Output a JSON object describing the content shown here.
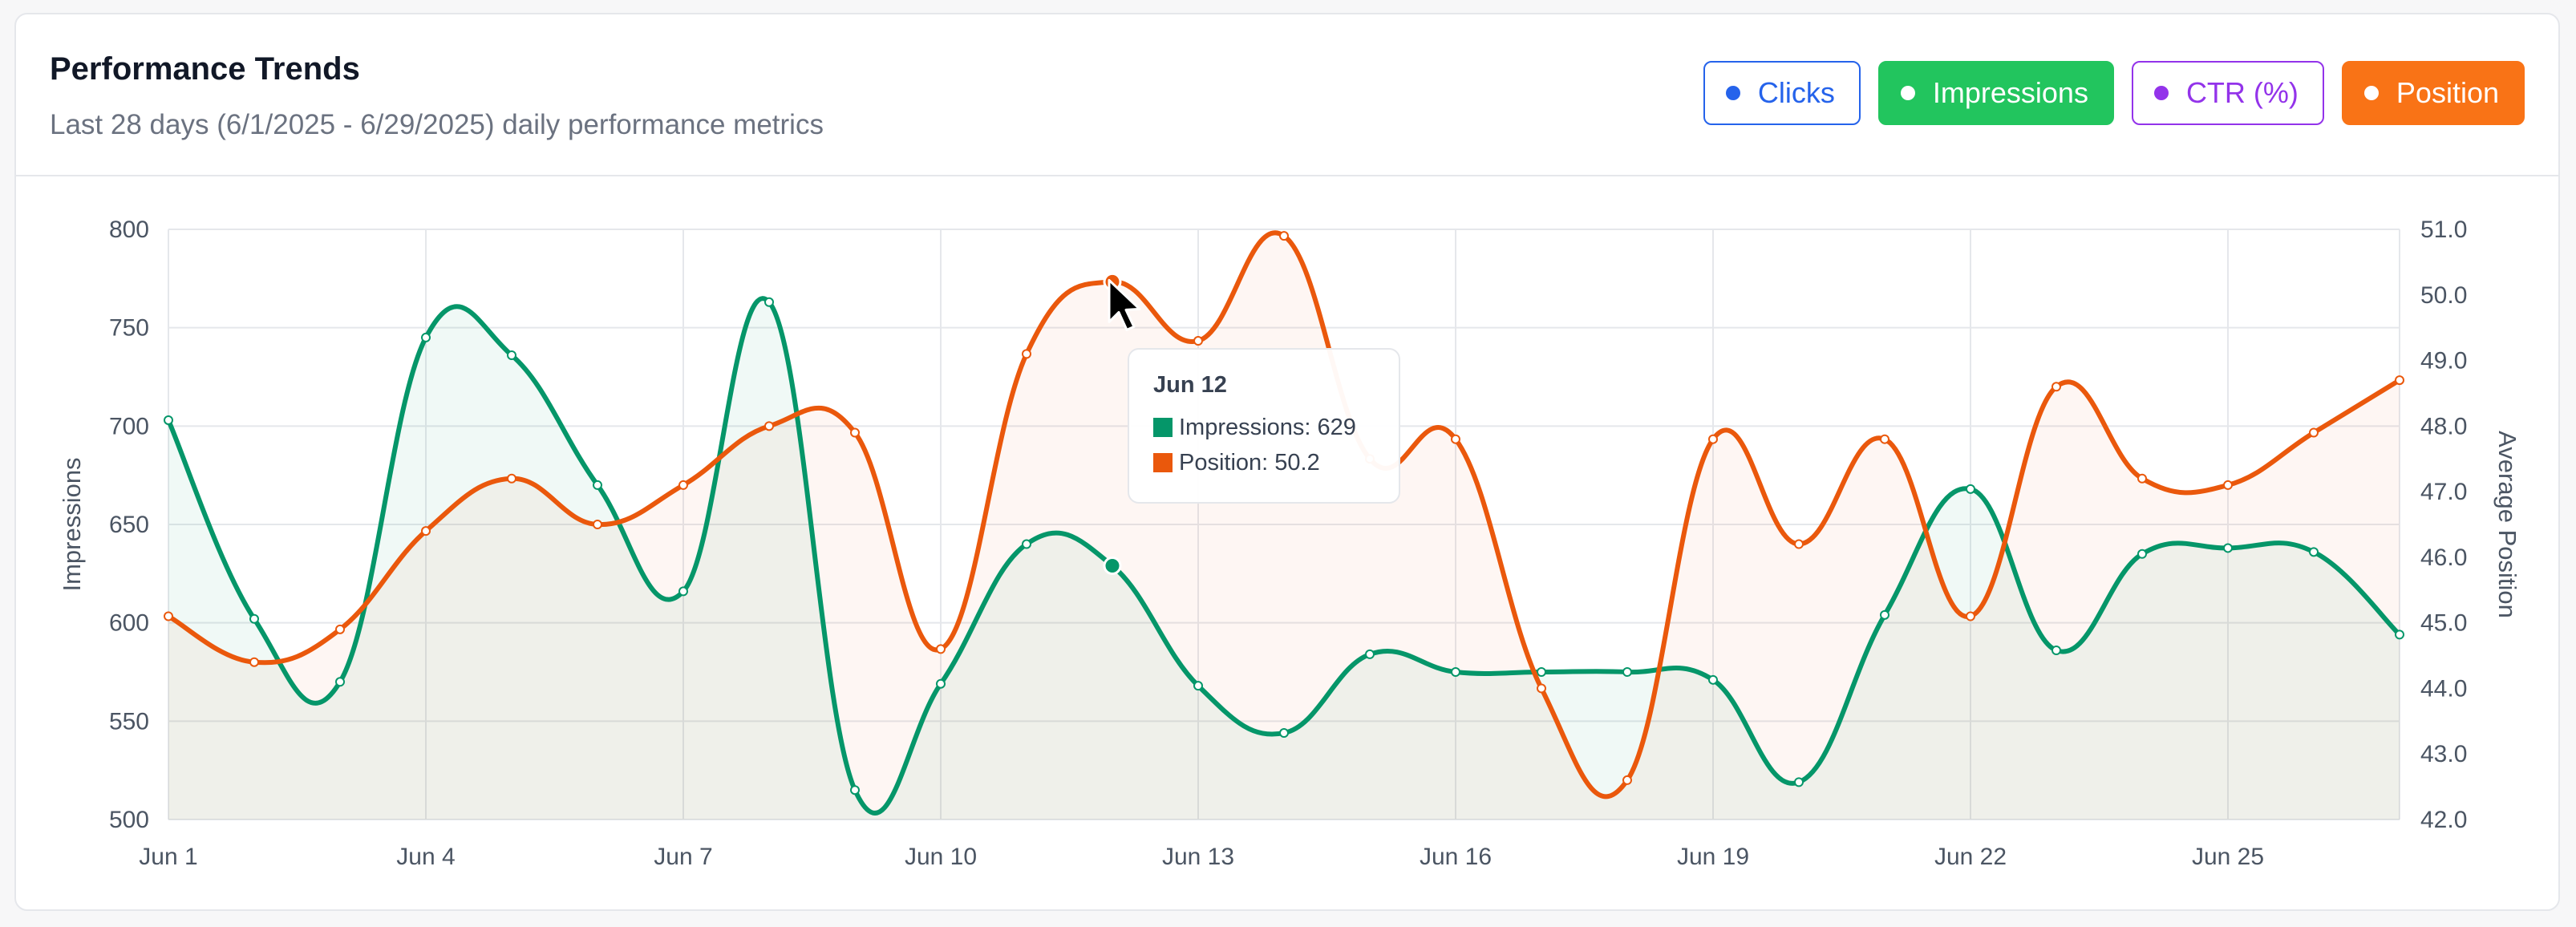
{
  "header": {
    "title": "Performance Trends",
    "subtitle": "Last 28 days (6/1/2025 - 6/29/2025) daily performance metrics"
  },
  "legend": {
    "clicks": "Clicks",
    "impressions": "Impressions",
    "ctr": "CTR (%)",
    "position": "Position"
  },
  "colors": {
    "impressions": "#059669",
    "position": "#ea580c",
    "clicks": "#2563eb",
    "ctr": "#9333ea"
  },
  "tooltip": {
    "title": "Jun 12",
    "impressions": "Impressions: 629",
    "position": "Position: 50.2"
  },
  "chart_data": {
    "type": "line",
    "x": [
      "Jun 1",
      "Jun 2",
      "Jun 3",
      "Jun 4",
      "Jun 5",
      "Jun 6",
      "Jun 7",
      "Jun 8",
      "Jun 9",
      "Jun 10",
      "Jun 11",
      "Jun 12",
      "Jun 13",
      "Jun 14",
      "Jun 15",
      "Jun 16",
      "Jun 17",
      "Jun 18",
      "Jun 19",
      "Jun 20",
      "Jun 21",
      "Jun 22",
      "Jun 23",
      "Jun 24",
      "Jun 25",
      "Jun 26",
      "Jun 27"
    ],
    "x_tick_labels": [
      "Jun 1",
      "Jun 4",
      "Jun 7",
      "Jun 10",
      "Jun 13",
      "Jun 16",
      "Jun 19",
      "Jun 22",
      "Jun 25"
    ],
    "series": [
      {
        "name": "Impressions",
        "axis": "left",
        "values": [
          703,
          602,
          570,
          745,
          736,
          670,
          616,
          763,
          515,
          569,
          640,
          629,
          568,
          544,
          584,
          575,
          575,
          575,
          571,
          519,
          604,
          668,
          586,
          635,
          638,
          636,
          594
        ]
      },
      {
        "name": "Position",
        "axis": "right",
        "values": [
          45.1,
          44.4,
          44.9,
          46.4,
          47.2,
          46.5,
          47.1,
          48.0,
          47.9,
          44.6,
          49.1,
          50.2,
          49.3,
          50.9,
          47.5,
          47.8,
          44.0,
          42.6,
          47.8,
          46.2,
          47.8,
          45.1,
          48.6,
          47.2,
          47.1,
          47.9,
          48.7
        ]
      }
    ],
    "y_left": {
      "label": "Impressions",
      "range": [
        500,
        800
      ],
      "ticks": [
        500,
        550,
        600,
        650,
        700,
        750,
        800
      ]
    },
    "y_right": {
      "label": "Average Position",
      "range": [
        42.0,
        51.0
      ],
      "ticks": [
        "42.0",
        "43.0",
        "44.0",
        "45.0",
        "46.0",
        "47.0",
        "48.0",
        "49.0",
        "50.0",
        "51.0"
      ]
    },
    "grid": true,
    "area_fill": true,
    "hover_index": 11
  }
}
